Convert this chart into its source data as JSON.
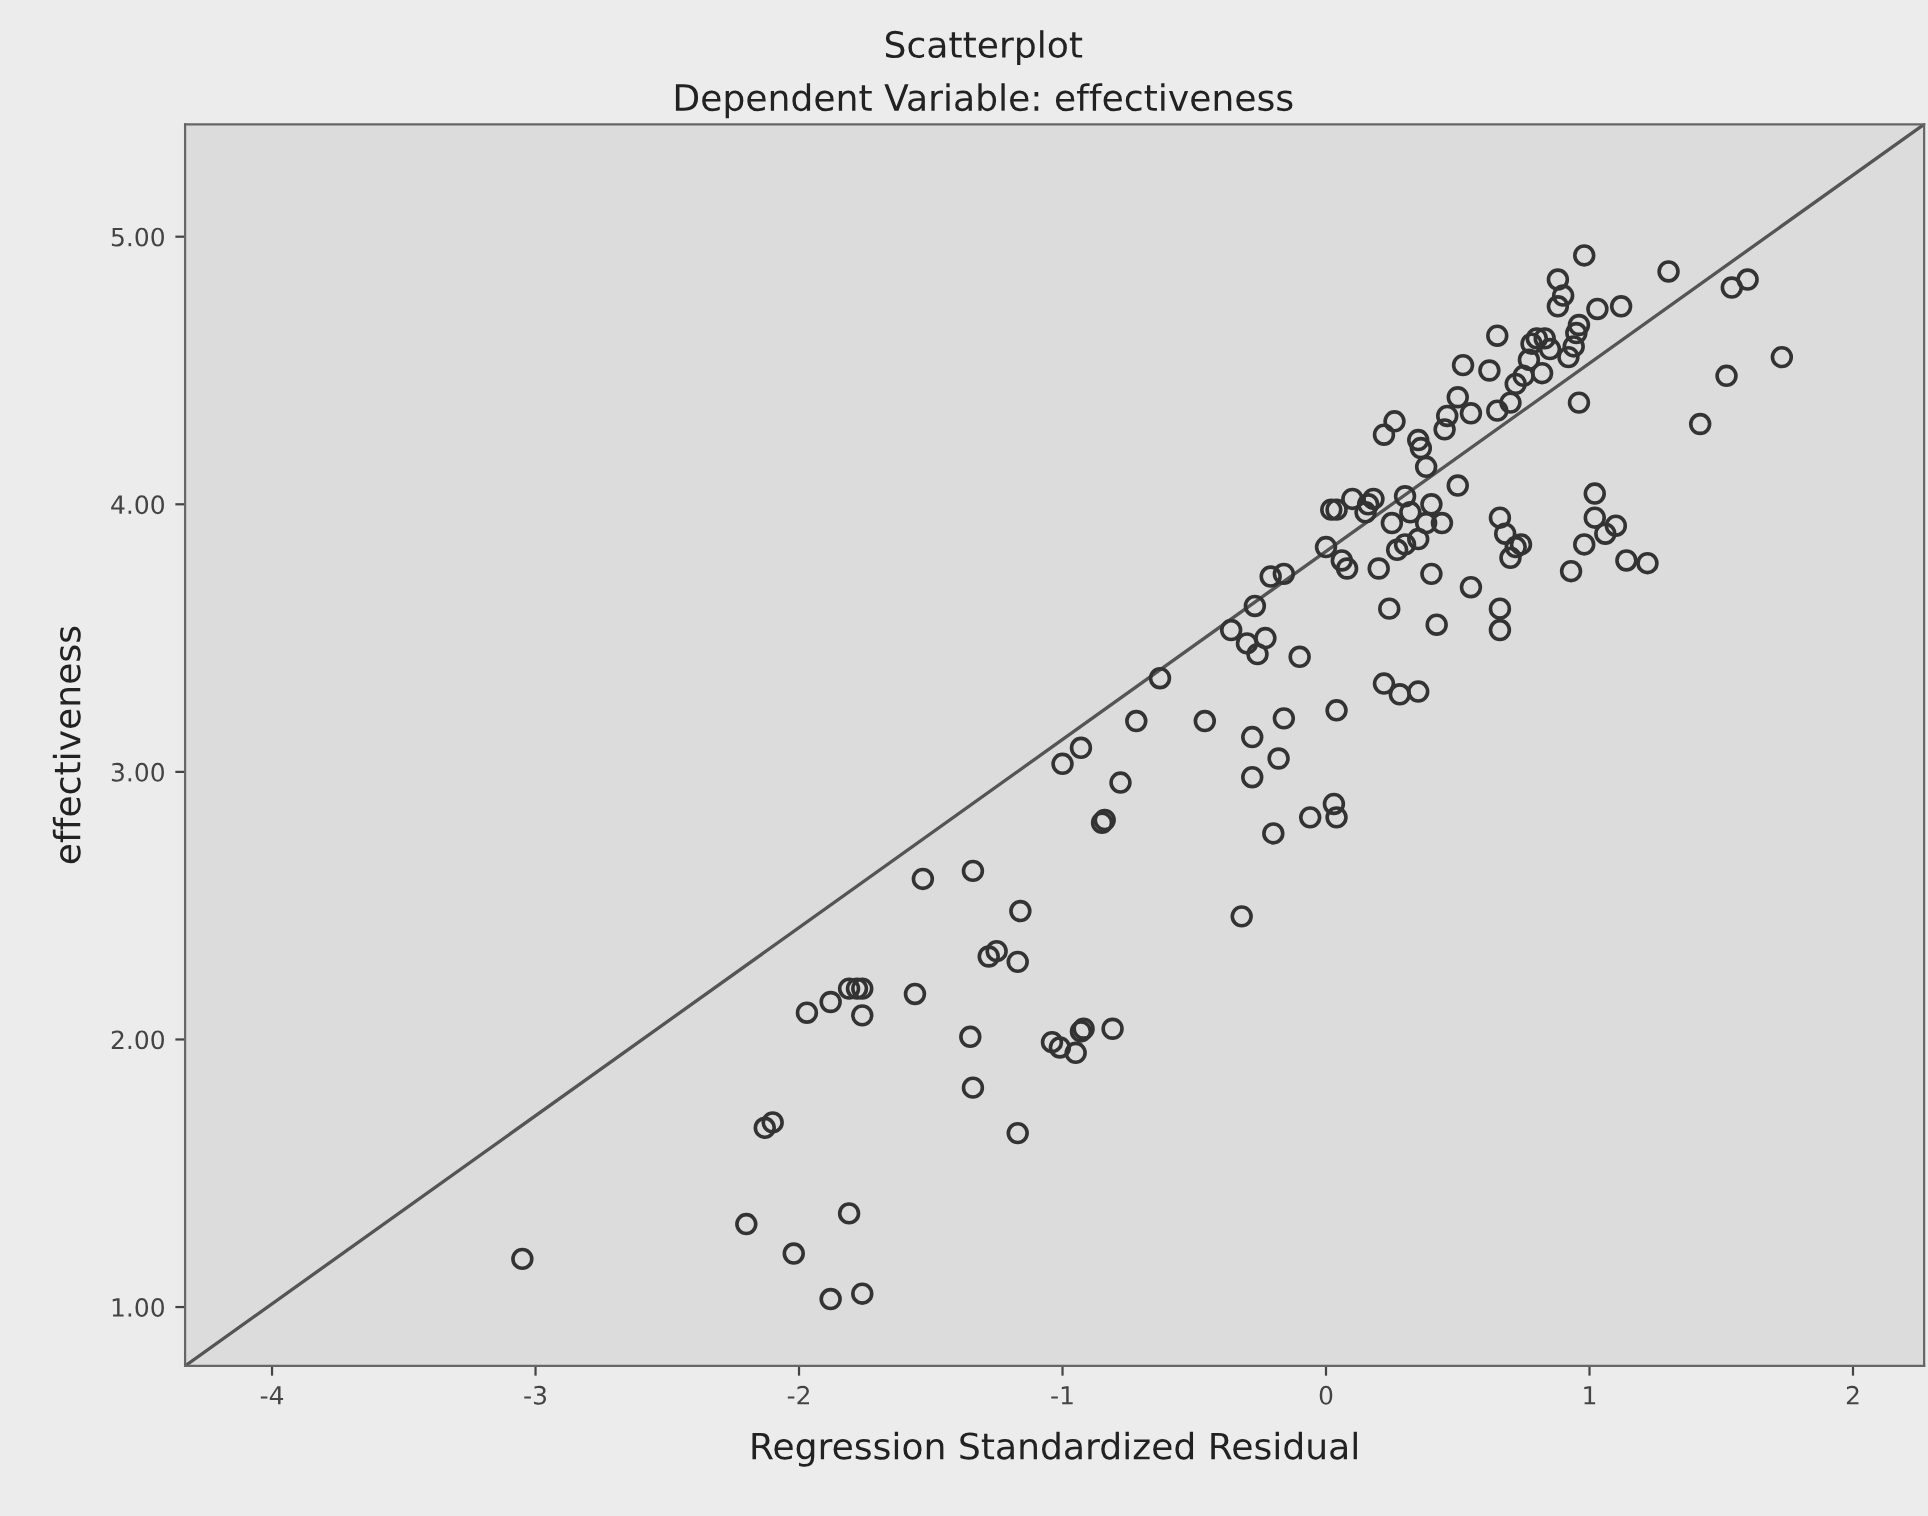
{
  "chart_data": {
    "type": "scatter",
    "title": "Scatterplot",
    "subtitle": "Dependent Variable: effectiveness",
    "xlabel": "Regression Standardized Residual",
    "ylabel": "effectiveness",
    "xlim": [
      -4.33,
      2.27
    ],
    "ylim": [
      0.78,
      5.42
    ],
    "xticks": [
      {
        "value": -4,
        "label": "-4"
      },
      {
        "value": -3,
        "label": "-3"
      },
      {
        "value": -2,
        "label": "-2"
      },
      {
        "value": -1,
        "label": "-1"
      },
      0,
      1,
      2
    ],
    "yticks": [
      {
        "value": 1,
        "label": "1.00"
      },
      {
        "value": 2,
        "label": "2.00"
      },
      {
        "value": 3,
        "label": "3.00"
      },
      {
        "value": 4,
        "label": "4.00"
      },
      {
        "value": 5,
        "label": "5.00"
      }
    ],
    "grid": false,
    "legend": false,
    "series": [
      {
        "marker": "circle",
        "color": "#333333",
        "x": [
          -3.05,
          -2.2,
          -2.02,
          -1.88,
          -1.76,
          -1.81,
          -2.13,
          -2.1,
          -1.97,
          -1.88,
          -1.81,
          -1.78,
          -1.76,
          -1.76,
          -1.56,
          -1.53,
          -1.34,
          -1.35,
          -1.34,
          -1.17,
          -1.28,
          -1.25,
          -1.17,
          -1.16,
          -1.04,
          -1.01,
          -0.95,
          -0.93,
          -0.92,
          -0.81,
          -1.0,
          -0.93,
          -0.85,
          -0.84,
          -0.78,
          -0.72,
          -0.63,
          -0.46,
          -0.32,
          -0.28,
          -0.28,
          -0.2,
          -0.18,
          -0.16,
          -0.06,
          0.03,
          0.04,
          0.04,
          -0.36,
          -0.3,
          -0.26,
          -0.27,
          -0.21,
          -0.16,
          -0.1,
          -0.23,
          0.0,
          0.02,
          0.04,
          0.06,
          0.08,
          0.1,
          0.16,
          0.18,
          0.15,
          0.2,
          0.22,
          0.24,
          0.25,
          0.27,
          0.28,
          0.3,
          0.3,
          0.32,
          0.35,
          0.35,
          0.36,
          0.38,
          0.38,
          0.4,
          0.42,
          0.4,
          0.45,
          0.44,
          0.5,
          0.22,
          0.26,
          0.35,
          0.46,
          0.5,
          0.52,
          0.55,
          0.55,
          0.62,
          0.65,
          0.65,
          0.66,
          0.68,
          0.66,
          0.66,
          0.7,
          0.72,
          0.72,
          0.7,
          0.74,
          0.75,
          0.77,
          0.78,
          0.8,
          0.82,
          0.83,
          0.85,
          0.88,
          0.9,
          0.88,
          0.92,
          0.94,
          0.95,
          0.96,
          0.98,
          0.93,
          0.96,
          0.98,
          1.02,
          1.02,
          1.03,
          1.06,
          1.1,
          1.12,
          1.14,
          1.22,
          1.3,
          1.42,
          1.52,
          1.54,
          1.6,
          1.73
        ],
        "values": [
          1.18,
          1.31,
          1.2,
          1.03,
          1.05,
          1.35,
          1.67,
          1.69,
          2.1,
          2.14,
          2.19,
          2.19,
          2.19,
          2.09,
          2.17,
          2.6,
          2.63,
          2.01,
          1.82,
          1.65,
          2.31,
          2.33,
          2.29,
          2.48,
          1.99,
          1.97,
          1.95,
          2.03,
          2.04,
          2.04,
          3.03,
          3.09,
          2.81,
          2.82,
          2.96,
          3.19,
          3.35,
          3.19,
          2.46,
          2.98,
          3.13,
          2.77,
          3.05,
          3.2,
          2.83,
          2.88,
          2.83,
          3.23,
          3.53,
          3.48,
          3.44,
          3.62,
          3.73,
          3.74,
          3.43,
          3.5,
          3.84,
          3.98,
          3.98,
          3.79,
          3.76,
          4.02,
          4.0,
          4.02,
          3.97,
          3.76,
          3.33,
          3.61,
          3.93,
          3.83,
          3.29,
          3.85,
          4.03,
          3.97,
          3.87,
          3.3,
          4.21,
          4.14,
          3.93,
          4.0,
          3.55,
          3.74,
          4.28,
          3.93,
          4.07,
          4.26,
          4.31,
          4.24,
          4.33,
          4.4,
          4.52,
          4.34,
          3.69,
          4.5,
          4.63,
          4.35,
          3.95,
          3.89,
          3.61,
          3.53,
          4.38,
          4.45,
          3.84,
          3.8,
          3.85,
          4.48,
          4.54,
          4.6,
          4.62,
          4.49,
          4.62,
          4.58,
          4.74,
          4.78,
          4.84,
          4.55,
          4.59,
          4.64,
          4.67,
          4.93,
          3.75,
          4.38,
          3.85,
          4.04,
          3.95,
          4.73,
          3.89,
          3.92,
          4.74,
          3.79,
          3.78,
          4.87,
          4.3,
          4.48,
          4.81,
          4.84,
          4.55
        ]
      },
      {
        "type": "line",
        "color": "#555555",
        "x": [
          -4.33,
          2.27
        ],
        "values": [
          0.78,
          5.42
        ]
      }
    ]
  }
}
